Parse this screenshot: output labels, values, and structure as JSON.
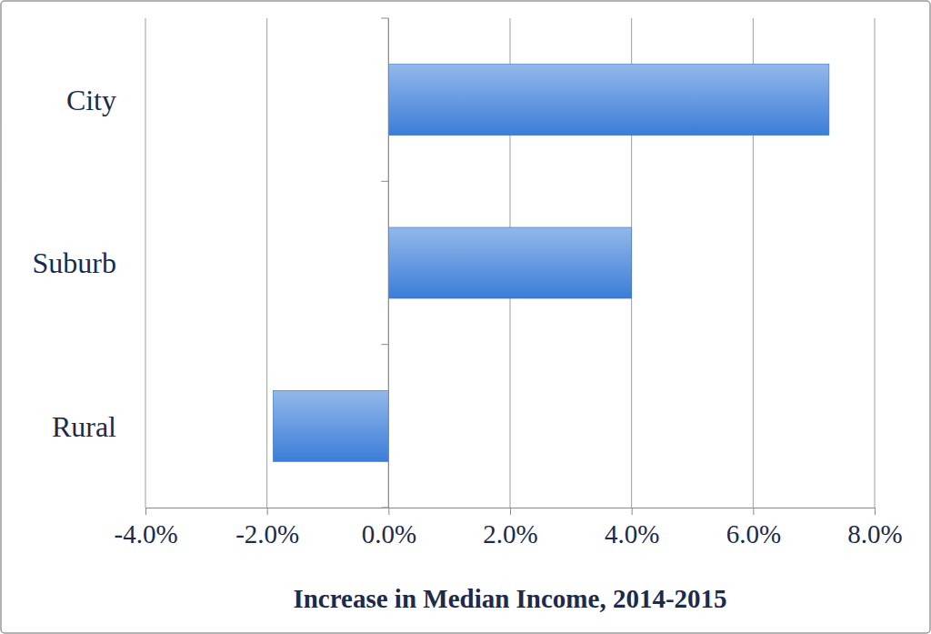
{
  "chart_data": {
    "type": "bar",
    "orientation": "horizontal",
    "categories": [
      "City",
      "Suburb",
      "Rural"
    ],
    "values": [
      7.25,
      4.0,
      -1.9
    ],
    "color": "#3b7dd8",
    "xlabel": "Increase in Median Income, 2014-2015",
    "xlim": [
      -4,
      8
    ],
    "xticks": [
      {
        "value": -4,
        "label": "-4.0%"
      },
      {
        "value": -2,
        "label": "-2.0%"
      },
      {
        "value": 0,
        "label": "0.0%"
      },
      {
        "value": 2,
        "label": "2.0%"
      },
      {
        "value": 4,
        "label": "4.0%"
      },
      {
        "value": 6,
        "label": "6.0%"
      },
      {
        "value": 8,
        "label": "8.0%"
      }
    ],
    "grid": true
  }
}
